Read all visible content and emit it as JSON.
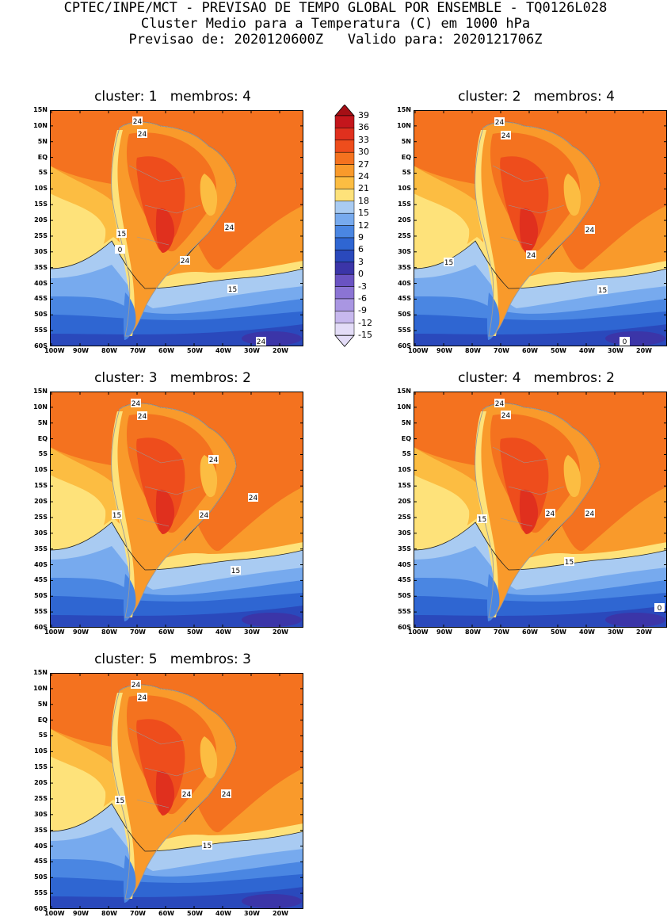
{
  "header": {
    "line1": "CPTEC/INPE/MCT - PREVISAO DE TEMPO GLOBAL POR ENSEMBLE - TQ0126L028",
    "line2": "Cluster Medio para a Temperatura (C) em 1000 hPa",
    "line3": "Previsao de: 2020120600Z   Valido para: 2020121706Z"
  },
  "lat_ticks": [
    "15N",
    "10N",
    "5N",
    "EQ",
    "5S",
    "10S",
    "15S",
    "20S",
    "25S",
    "30S",
    "35S",
    "40S",
    "45S",
    "50S",
    "55S",
    "60S"
  ],
  "lon_ticks": [
    "100W",
    "90W",
    "80W",
    "70W",
    "60W",
    "50W",
    "40W",
    "30W",
    "20W"
  ],
  "colorbar": {
    "labels": [
      "39",
      "36",
      "33",
      "30",
      "27",
      "24",
      "21",
      "18",
      "15",
      "12",
      "9",
      "6",
      "3",
      "0",
      "-3",
      "-6",
      "-9",
      "-12",
      "-15"
    ],
    "colors": [
      "#a50f15",
      "#c4161c",
      "#e0301e",
      "#ee4d1c",
      "#f4721f",
      "#f99a2b",
      "#fcbd42",
      "#fee27a",
      "#a9cbf2",
      "#77aaee",
      "#4a86e2",
      "#2f66d2",
      "#2a49bc",
      "#3b35a8",
      "#6a53c2",
      "#8b74d4",
      "#a996e2",
      "#c7b8ee",
      "#e3dcf7"
    ]
  },
  "panels": [
    {
      "title": "cluster: 1   membros: 4",
      "contour_labels": [
        "24",
        "24",
        "24",
        "24",
        "15",
        "15",
        "24",
        "0"
      ]
    },
    {
      "title": "cluster: 2   membros: 4",
      "contour_labels": [
        "24",
        "24",
        "24",
        "15",
        "24",
        "15",
        "0"
      ]
    },
    {
      "title": "cluster: 3   membros: 2",
      "contour_labels": [
        "24",
        "24",
        "24",
        "15",
        "24",
        "24",
        "15"
      ]
    },
    {
      "title": "cluster: 4   membros: 2",
      "contour_labels": [
        "24",
        "24",
        "15",
        "24",
        "24",
        "15",
        "0"
      ]
    },
    {
      "title": "cluster: 5   membros: 3",
      "contour_labels": [
        "24",
        "24",
        "15",
        "24",
        "24",
        "15"
      ]
    }
  ]
}
